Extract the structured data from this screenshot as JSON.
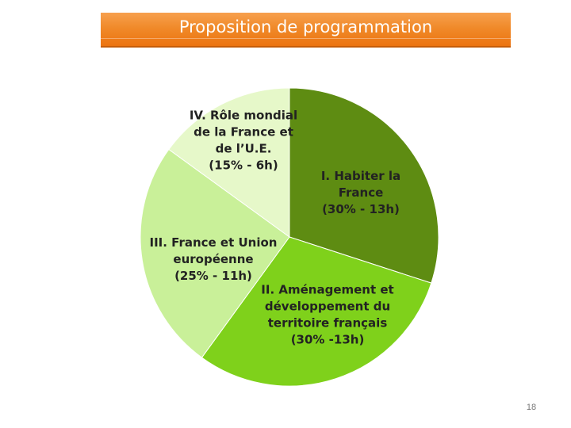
{
  "slide": {
    "title": "Proposition de programmation",
    "page_number": "18"
  },
  "colors": {
    "title_banner": "#ee7d1c",
    "slice_1": "#5e8c12",
    "slice_2": "#7fd11b",
    "slice_3": "#c9f099",
    "slice_4": "#e6f8c9"
  },
  "chart_data": {
    "type": "pie",
    "title": "",
    "slices": [
      {
        "label_lines": [
          "I. Habiter la",
          "France",
          "(30% - 13h)"
        ],
        "value": 30
      },
      {
        "label_lines": [
          "II. Aménagement et",
          "développement du",
          "territoire français",
          "(30% -13h)"
        ],
        "value": 30
      },
      {
        "label_lines": [
          "III. France et Union",
          "européenne",
          "(25% - 11h)"
        ],
        "value": 25
      },
      {
        "label_lines": [
          "IV. Rôle mondial",
          "de la France et",
          "de l’U.E.",
          "(15% - 6h)"
        ],
        "value": 15
      }
    ]
  }
}
